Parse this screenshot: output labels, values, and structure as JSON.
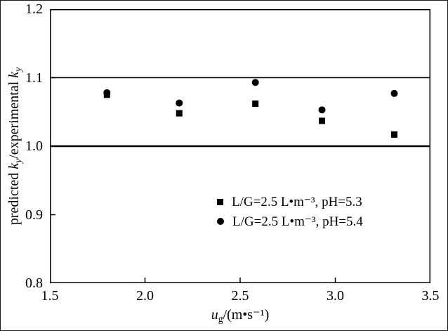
{
  "figure": {
    "background": "#ffffff",
    "frame_color": "#000000"
  },
  "chart_data": {
    "type": "scatter",
    "title": "",
    "xlabel": "ug/(m•s⁻¹)",
    "ylabel": "predicted ky/experimental ky",
    "xlim": [
      1.5,
      3.5
    ],
    "ylim": [
      0.8,
      1.2
    ],
    "xticks": [
      1.5,
      2.0,
      2.5,
      3.0,
      3.5
    ],
    "xtick_labels": [
      "1.5",
      "2.0",
      "2.5",
      "3.0",
      "3.5"
    ],
    "yticks": [
      0.8,
      0.9,
      1.0,
      1.1,
      1.2
    ],
    "ytick_labels": [
      "0.8",
      "0.9",
      "1.0",
      "1.1",
      "1.2"
    ],
    "grid": false,
    "legend_position": "inside lower-right",
    "reference_lines": [
      {
        "y": 1.0,
        "stroke_width": 2.5
      },
      {
        "y": 1.1,
        "stroke_width": 1.5
      }
    ],
    "series": [
      {
        "name": "L/G=2.5 L•m⁻³, pH=5.3",
        "marker": "square",
        "color": "#000000",
        "x": [
          1.8,
          2.18,
          2.58,
          2.93,
          3.31
        ],
        "y": [
          1.075,
          1.048,
          1.062,
          1.037,
          1.017
        ]
      },
      {
        "name": "L/G=2.5 L•m⁻³, pH=5.4",
        "marker": "circle",
        "color": "#000000",
        "x": [
          1.8,
          2.18,
          2.58,
          2.93,
          3.31
        ],
        "y": [
          1.078,
          1.063,
          1.093,
          1.053,
          1.077
        ]
      }
    ]
  },
  "labels": {
    "xlabel_parts": [
      {
        "text": "u",
        "style": "italic"
      },
      {
        "text": "g",
        "style": "sub"
      },
      {
        "text": "/(m•s⁻¹)",
        "style": ""
      }
    ],
    "ylabel_parts": [
      {
        "text": "predicted ",
        "style": ""
      },
      {
        "text": "k",
        "style": "italic"
      },
      {
        "text": "y",
        "style": "sub italic"
      },
      {
        "text": "/experimental ",
        "style": ""
      },
      {
        "text": "k",
        "style": "italic"
      },
      {
        "text": "y",
        "style": "sub italic"
      }
    ]
  }
}
